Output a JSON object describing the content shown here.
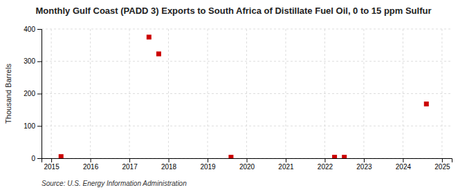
{
  "chart_data": {
    "type": "scatter",
    "title": "Monthly Gulf Coast (PADD 3) Exports to South Africa of Distillate Fuel Oil, 0 to 15 ppm Sulfur",
    "y_label": "Thousand Barrels",
    "annotations": [
      "Source: U.S. Energy Information Administration"
    ],
    "x": [
      2015.25,
      2017.5,
      2017.75,
      2019.6,
      2022.25,
      2022.5,
      2024.6
    ],
    "values": [
      5,
      375,
      323,
      3,
      3,
      3,
      168
    ],
    "color": "#cc0000",
    "marker": "square",
    "xlim": [
      2014.75,
      2025.25
    ],
    "xticks": [
      2015,
      2016,
      2017,
      2018,
      2019,
      2020,
      2021,
      2022,
      2023,
      2024,
      2025
    ],
    "ylim": [
      0,
      400
    ],
    "yticks": [
      0,
      100,
      200,
      300,
      400
    ],
    "grid": true
  }
}
